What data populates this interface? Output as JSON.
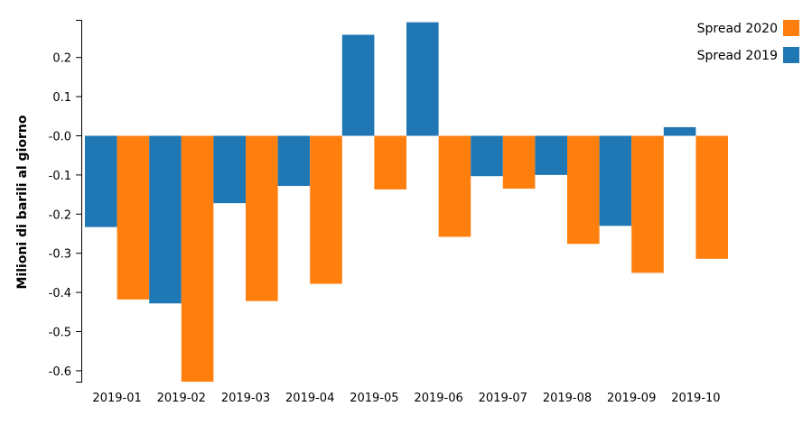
{
  "chart_data": {
    "type": "bar",
    "title": "",
    "xlabel": "",
    "ylabel": "Milioni di barili al giorno",
    "ylim": [
      -0.63,
      0.29
    ],
    "yticks": [
      "0.2",
      "0.1",
      "-0.0",
      "-0.1",
      "-0.2",
      "-0.3",
      "-0.4",
      "-0.5",
      "-0.6"
    ],
    "ytick_values": [
      0.2,
      0.1,
      0.0,
      -0.1,
      -0.2,
      -0.3,
      -0.4,
      -0.5,
      -0.6
    ],
    "categories": [
      "2019-01",
      "2019-02",
      "2019-03",
      "2019-04",
      "2019-05",
      "2019-06",
      "2019-07",
      "2019-08",
      "2019-09",
      "2019-10"
    ],
    "series": [
      {
        "name": "Spread 2019",
        "color": "#1f77b4",
        "values": [
          -0.233,
          -0.428,
          -0.172,
          -0.128,
          0.258,
          0.29,
          -0.103,
          -0.1,
          -0.23,
          0.022
        ]
      },
      {
        "name": "Spread 2020",
        "color": "#ff7f0e",
        "values": [
          -0.418,
          -0.628,
          -0.422,
          -0.378,
          -0.137,
          -0.258,
          -0.135,
          -0.276,
          -0.35,
          -0.314
        ]
      }
    ],
    "legend": {
      "position": "top-right",
      "entries": [
        "Spread 2020",
        "Spread 2019"
      ]
    },
    "grid": false
  }
}
